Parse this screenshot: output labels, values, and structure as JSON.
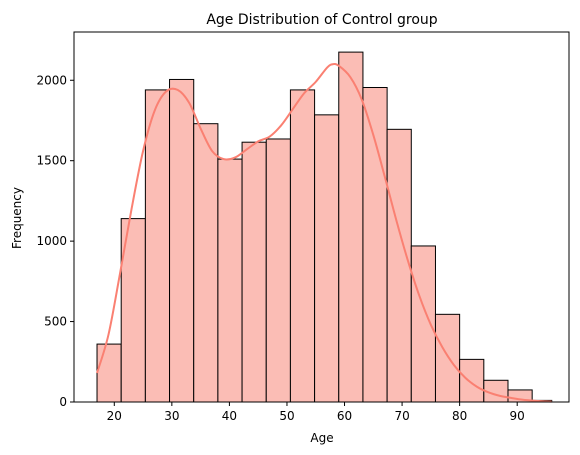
{
  "chart_data": {
    "type": "bar",
    "title": "Age Distribution of Control group",
    "xlabel": "Age",
    "ylabel": "Frequency",
    "xlim": [
      13,
      99
    ],
    "ylim": [
      0,
      2300
    ],
    "xticks": [
      20,
      30,
      40,
      50,
      60,
      70,
      80,
      90
    ],
    "yticks": [
      0,
      500,
      1000,
      1500,
      2000
    ],
    "grid": false,
    "colors": {
      "bar_fill": "#fbbdb5",
      "bar_edge": "#000000",
      "kde_line": "#fa8072"
    },
    "bins": [
      {
        "x0": 17.0,
        "x1": 21.2,
        "count": 360
      },
      {
        "x0": 21.2,
        "x1": 25.4,
        "count": 1140
      },
      {
        "x0": 25.4,
        "x1": 29.6,
        "count": 1940
      },
      {
        "x0": 29.6,
        "x1": 33.8,
        "count": 2005
      },
      {
        "x0": 33.8,
        "x1": 38.0,
        "count": 1730
      },
      {
        "x0": 38.0,
        "x1": 42.2,
        "count": 1510
      },
      {
        "x0": 42.2,
        "x1": 46.4,
        "count": 1615
      },
      {
        "x0": 46.4,
        "x1": 50.6,
        "count": 1635
      },
      {
        "x0": 50.6,
        "x1": 54.8,
        "count": 1940
      },
      {
        "x0": 54.8,
        "x1": 59.0,
        "count": 1785
      },
      {
        "x0": 59.0,
        "x1": 63.2,
        "count": 2175
      },
      {
        "x0": 63.2,
        "x1": 67.4,
        "count": 1955
      },
      {
        "x0": 67.4,
        "x1": 71.6,
        "count": 1695
      },
      {
        "x0": 71.6,
        "x1": 75.8,
        "count": 970
      },
      {
        "x0": 75.8,
        "x1": 80.0,
        "count": 545
      },
      {
        "x0": 80.0,
        "x1": 84.2,
        "count": 265
      },
      {
        "x0": 84.2,
        "x1": 88.4,
        "count": 135
      },
      {
        "x0": 88.4,
        "x1": 92.6,
        "count": 75
      },
      {
        "x0": 92.6,
        "x1": 96.0,
        "count": 10
      }
    ],
    "kde": [
      [
        17,
        180
      ],
      [
        19,
        420
      ],
      [
        21,
        800
      ],
      [
        23,
        1200
      ],
      [
        25,
        1560
      ],
      [
        27,
        1810
      ],
      [
        29,
        1930
      ],
      [
        31,
        1940
      ],
      [
        33,
        1860
      ],
      [
        35,
        1700
      ],
      [
        37,
        1560
      ],
      [
        39,
        1510
      ],
      [
        41,
        1520
      ],
      [
        43,
        1570
      ],
      [
        45,
        1620
      ],
      [
        47,
        1650
      ],
      [
        49,
        1720
      ],
      [
        51,
        1820
      ],
      [
        53,
        1920
      ],
      [
        55,
        1990
      ],
      [
        57,
        2080
      ],
      [
        58,
        2100
      ],
      [
        59,
        2090
      ],
      [
        61,
        2020
      ],
      [
        63,
        1880
      ],
      [
        65,
        1660
      ],
      [
        67,
        1400
      ],
      [
        69,
        1130
      ],
      [
        71,
        880
      ],
      [
        73,
        660
      ],
      [
        75,
        480
      ],
      [
        77,
        340
      ],
      [
        79,
        230
      ],
      [
        81,
        150
      ],
      [
        83,
        95
      ],
      [
        85,
        60
      ],
      [
        87,
        38
      ],
      [
        89,
        25
      ],
      [
        91,
        14
      ],
      [
        93,
        8
      ],
      [
        95,
        4
      ],
      [
        96,
        2
      ]
    ]
  }
}
